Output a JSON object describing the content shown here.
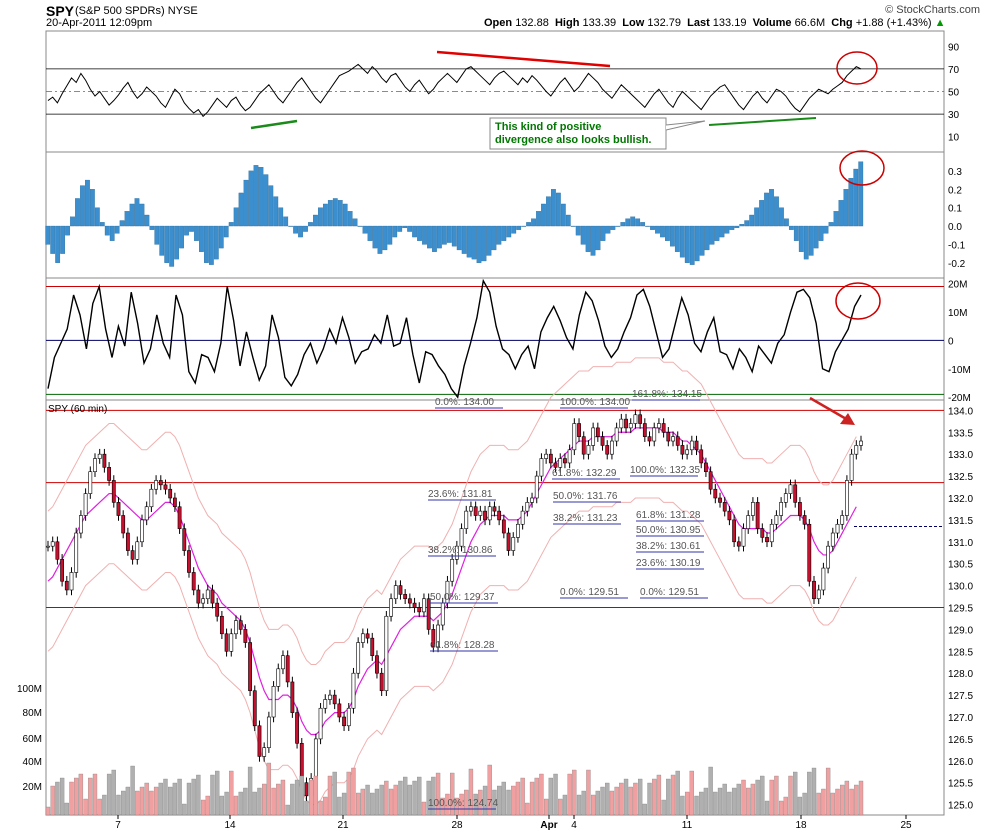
{
  "header": {
    "symbol": "SPY",
    "name": "(S&P 500 SPDRs)",
    "exchange": "NYSE",
    "datetime": "20-Apr-2011 12:09pm",
    "open_label": "Open",
    "open": "132.88",
    "high_label": "High",
    "high": "133.39",
    "low_label": "Low",
    "low": "132.79",
    "last_label": "Last",
    "last": "133.19",
    "volume_label": "Volume",
    "volume": "66.6M",
    "chg_label": "Chg",
    "chg": "+1.88 (+1.43%)",
    "brand": "© StockCharts.com"
  },
  "chart_data": {
    "type": "line",
    "title": "SPY (60 min)",
    "x_ticks": [
      "7",
      "14",
      "21",
      "28",
      "Apr",
      "4",
      "11",
      "18",
      "25"
    ],
    "panels": [
      {
        "name": "rsi",
        "yticks": [
          "90",
          "70",
          "50",
          "30",
          "10"
        ],
        "range": [
          0,
          100
        ],
        "reference_lines": [
          70,
          50,
          30
        ]
      },
      {
        "name": "histogram",
        "yticks": [
          "0.3",
          "0.2",
          "0.1",
          "0.0",
          "-0.1",
          "-0.2"
        ],
        "range": [
          -0.25,
          0.37
        ]
      },
      {
        "name": "oscillator",
        "yticks": [
          "20M",
          "10M",
          "0",
          "-10M",
          "-20M"
        ],
        "range": [
          -21000000,
          22000000
        ],
        "reference_lines": [
          19000000,
          0,
          -19000000
        ]
      },
      {
        "name": "price",
        "yticks": [
          "134.0",
          "133.5",
          "133.0",
          "132.5",
          "132.0",
          "131.5",
          "131.0",
          "130.5",
          "130.0",
          "129.5",
          "129.0",
          "128.5",
          "128.0",
          "127.5",
          "127.0",
          "126.5",
          "126.0",
          "125.5",
          "125.0"
        ],
        "range": [
          124.9,
          134.1
        ],
        "horizontal_lines": [
          134.0,
          132.35,
          129.5
        ]
      },
      {
        "name": "volume",
        "yticks": [
          "100M",
          "80M",
          "60M",
          "40M",
          "20M"
        ]
      }
    ],
    "price": [
      130.9,
      131.0,
      130.6,
      130.1,
      129.9,
      130.3,
      131.2,
      131.6,
      132.1,
      132.6,
      132.9,
      133.0,
      132.7,
      132.4,
      131.9,
      131.6,
      131.2,
      130.8,
      130.6,
      131.0,
      131.5,
      131.8,
      132.2,
      132.4,
      132.3,
      132.2,
      132.0,
      131.8,
      131.3,
      130.8,
      130.3,
      129.9,
      129.6,
      129.7,
      129.9,
      129.6,
      129.3,
      128.9,
      128.5,
      128.9,
      129.2,
      129.0,
      128.7,
      127.6,
      126.8,
      126.1,
      126.3,
      127.0,
      127.7,
      128.1,
      128.4,
      127.8,
      127.1,
      126.4,
      125.5,
      125.2,
      125.6,
      126.5,
      127.2,
      127.4,
      127.5,
      127.3,
      127.0,
      126.8,
      127.2,
      128.0,
      128.7,
      128.9,
      128.8,
      128.4,
      128.0,
      127.6,
      129.3,
      129.7,
      130.0,
      129.8,
      129.7,
      129.6,
      129.5,
      129.4,
      129.7,
      129.0,
      128.6,
      129.1,
      129.6,
      130.1,
      130.6,
      130.9,
      131.3,
      131.7,
      131.8,
      131.6,
      131.7,
      131.5,
      131.8,
      131.7,
      131.5,
      131.2,
      130.8,
      131.1,
      131.4,
      131.7,
      131.9,
      132.0,
      132.5,
      132.9,
      133.0,
      132.8,
      132.7,
      132.9,
      132.8,
      133.1,
      133.7,
      133.4,
      133.0,
      133.2,
      133.6,
      133.4,
      133.2,
      133.0,
      133.3,
      133.6,
      133.8,
      133.6,
      133.7,
      133.9,
      133.7,
      133.4,
      133.3,
      133.6,
      133.7,
      133.5,
      133.3,
      133.4,
      133.2,
      133.0,
      133.1,
      133.3,
      133.1,
      132.8,
      132.6,
      132.2,
      132.0,
      131.9,
      131.7,
      131.5,
      131.0,
      130.9,
      131.3,
      131.6,
      131.9,
      131.3,
      131.1,
      131.0,
      131.4,
      131.6,
      131.9,
      132.1,
      132.3,
      131.9,
      131.6,
      131.4,
      130.1,
      129.7,
      129.9,
      130.4,
      130.9,
      131.2,
      131.4,
      131.6,
      132.4,
      133.0,
      133.2,
      133.3
    ],
    "price_ma": [
      130.1,
      130.2,
      130.4,
      130.6,
      130.8,
      131.0,
      131.2,
      131.4,
      131.6,
      131.7,
      131.8,
      131.9,
      132.0,
      132.1,
      132.1,
      132.0,
      131.9,
      131.8,
      131.7,
      131.6,
      131.5,
      131.5,
      131.6,
      131.7,
      131.8,
      131.9,
      131.9,
      131.8,
      131.6,
      131.3,
      131.0,
      130.7,
      130.4,
      130.2,
      130.0,
      129.9,
      129.8,
      129.6,
      129.5,
      129.4,
      129.3,
      129.2,
      129.0,
      128.7,
      128.3,
      127.9,
      127.6,
      127.4,
      127.4,
      127.4,
      127.5,
      127.5,
      127.4,
      127.2,
      126.9,
      126.7,
      126.6,
      126.6,
      126.7,
      126.9,
      127.0,
      127.1,
      127.1,
      127.1,
      127.2,
      127.4,
      127.7,
      127.9,
      128.1,
      128.2,
      128.3,
      128.2,
      128.4,
      128.6,
      128.8,
      129.0,
      129.1,
      129.2,
      129.3,
      129.3,
      129.3,
      129.3,
      129.2,
      129.3,
      129.4,
      129.6,
      129.8,
      130.1,
      130.4,
      130.7,
      131.0,
      131.2,
      131.4,
      131.5,
      131.6,
      131.6,
      131.6,
      131.6,
      131.5,
      131.5,
      131.5,
      131.6,
      131.7,
      131.9,
      132.1,
      132.3,
      132.5,
      132.7,
      132.8,
      132.9,
      133.0,
      133.1,
      133.2,
      133.3,
      133.3,
      133.3,
      133.4,
      133.4,
      133.4,
      133.4,
      133.4,
      133.5,
      133.5,
      133.5,
      133.5,
      133.6,
      133.6,
      133.6,
      133.6,
      133.6,
      133.6,
      133.5,
      133.5,
      133.5,
      133.4,
      133.3,
      133.3,
      133.2,
      133.1,
      133.0,
      132.8,
      132.6,
      132.4,
      132.2,
      132.0,
      131.8,
      131.6,
      131.4,
      131.3,
      131.3,
      131.3,
      131.3,
      131.3,
      131.2,
      131.2,
      131.3,
      131.4,
      131.5,
      131.6,
      131.6,
      131.6,
      131.5,
      131.3,
      131.0,
      130.8,
      130.7,
      130.7,
      130.8,
      131.0,
      131.2,
      131.4,
      131.6,
      131.8
    ],
    "rsi": [
      42,
      45,
      40,
      48,
      55,
      62,
      58,
      66,
      60,
      52,
      46,
      50,
      44,
      38,
      42,
      47,
      53,
      58,
      50,
      44,
      48,
      54,
      50,
      46,
      40,
      36,
      44,
      52,
      48,
      40,
      35,
      31,
      34,
      28,
      32,
      38,
      44,
      40,
      36,
      42,
      45,
      38,
      33,
      36,
      42,
      48,
      52,
      56,
      50,
      44,
      40,
      46,
      52,
      58,
      62,
      56,
      50,
      44,
      40,
      46,
      52,
      58,
      64,
      66,
      68,
      71,
      74,
      70,
      66,
      72,
      68,
      62,
      58,
      64,
      66,
      60,
      54,
      50,
      56,
      60,
      54,
      48,
      52,
      58,
      62,
      66,
      62,
      58,
      64,
      70,
      72,
      68,
      64,
      60,
      56,
      62,
      66,
      68,
      64,
      60,
      56,
      62,
      58,
      64,
      60,
      55,
      50,
      46,
      52,
      58,
      62,
      56,
      50,
      54,
      60,
      66,
      62,
      58,
      52,
      48,
      44,
      50,
      56,
      52,
      48,
      44,
      40,
      36,
      42,
      48,
      52,
      46,
      40,
      36,
      44,
      50,
      46,
      42,
      38,
      34,
      40,
      46,
      50,
      54,
      56,
      50,
      44,
      38,
      34,
      40,
      46,
      50,
      44,
      40,
      46,
      52,
      50,
      46,
      40,
      35,
      32,
      38,
      44,
      48,
      52,
      50,
      48,
      52,
      55,
      58,
      64,
      68,
      72,
      70
    ],
    "histogram": [
      -0.1,
      -0.15,
      -0.2,
      -0.15,
      -0.05,
      0.05,
      0.15,
      0.22,
      0.25,
      0.2,
      0.1,
      0.02,
      -0.05,
      -0.08,
      -0.04,
      0.03,
      0.08,
      0.12,
      0.15,
      0.12,
      0.06,
      -0.02,
      -0.1,
      -0.16,
      -0.2,
      -0.22,
      -0.18,
      -0.12,
      -0.05,
      -0.03,
      -0.08,
      -0.14,
      -0.2,
      -0.21,
      -0.18,
      -0.12,
      -0.06,
      0.02,
      0.1,
      0.18,
      0.25,
      0.3,
      0.33,
      0.32,
      0.28,
      0.22,
      0.16,
      0.1,
      0.05,
      0.0,
      -0.04,
      -0.06,
      -0.03,
      0.02,
      0.06,
      0.1,
      0.12,
      0.14,
      0.15,
      0.14,
      0.12,
      0.08,
      0.04,
      0.0,
      -0.04,
      -0.08,
      -0.12,
      -0.15,
      -0.13,
      -0.1,
      -0.06,
      -0.03,
      -0.01,
      -0.03,
      -0.06,
      -0.08,
      -0.1,
      -0.12,
      -0.14,
      -0.12,
      -0.1,
      -0.09,
      -0.11,
      -0.13,
      -0.15,
      -0.17,
      -0.18,
      -0.2,
      -0.19,
      -0.16,
      -0.13,
      -0.1,
      -0.08,
      -0.06,
      -0.04,
      -0.02,
      0.0,
      0.02,
      0.04,
      0.08,
      0.12,
      0.16,
      0.2,
      0.18,
      0.12,
      0.06,
      0.0,
      -0.05,
      -0.1,
      -0.14,
      -0.16,
      -0.13,
      -0.08,
      -0.04,
      -0.02,
      0.0,
      0.02,
      0.04,
      0.05,
      0.04,
      0.02,
      0.0,
      -0.02,
      -0.04,
      -0.06,
      -0.08,
      -0.11,
      -0.14,
      -0.17,
      -0.2,
      -0.21,
      -0.19,
      -0.16,
      -0.13,
      -0.1,
      -0.08,
      -0.06,
      -0.04,
      -0.02,
      -0.01,
      0.01,
      0.03,
      0.06,
      0.1,
      0.14,
      0.18,
      0.2,
      0.16,
      0.1,
      0.04,
      -0.02,
      -0.08,
      -0.14,
      -0.18,
      -0.16,
      -0.12,
      -0.08,
      -0.04,
      0.02,
      0.08,
      0.14,
      0.2,
      0.26,
      0.31,
      0.35
    ],
    "oscillator": [
      -17000000,
      -6000000,
      -1000000,
      4000000,
      16000000,
      9000000,
      -3000000,
      13000000,
      19000000,
      4000000,
      -6000000,
      5000000,
      -2000000,
      17000000,
      6000000,
      -8000000,
      -3000000,
      9000000,
      -1000000,
      -6000000,
      16000000,
      9000000,
      -11000000,
      -15000000,
      -5000000,
      -6000000,
      -11000000,
      -1000000,
      19000000,
      7000000,
      -9000000,
      3000000,
      -6000000,
      -14000000,
      -9000000,
      9000000,
      1000000,
      -13000000,
      -16000000,
      -12000000,
      -5000000,
      -1000000,
      -8000000,
      -3000000,
      4000000,
      -1000000,
      8000000,
      1000000,
      -8000000,
      -4000000,
      -3000000,
      2000000,
      -1000000,
      9000000,
      -2000000,
      -1000000,
      8000000,
      -5000000,
      -15000000,
      -4000000,
      -5000000,
      -9000000,
      -12000000,
      -17000000,
      -20000000,
      -9000000,
      -1000000,
      8000000,
      21000000,
      17000000,
      5000000,
      -3000000,
      -5000000,
      -10000000,
      -5000000,
      -2000000,
      -10000000,
      3000000,
      8000000,
      12000000,
      7000000,
      1000000,
      -3000000,
      9000000,
      17000000,
      14000000,
      7000000,
      -2000000,
      -6000000,
      -3000000,
      3000000,
      8000000,
      16000000,
      18000000,
      12000000,
      3000000,
      -6000000,
      -3000000,
      6000000,
      15000000,
      9000000,
      -1000000,
      -4000000,
      3000000,
      8000000,
      -4000000,
      -5000000,
      -10000000,
      -3000000,
      -6000000,
      -11000000,
      -2000000,
      -5000000,
      -8000000,
      -1000000,
      2000000,
      10000000,
      17000000,
      18000000,
      15000000,
      6000000,
      -10000000,
      -11000000,
      -4000000,
      0,
      4000000,
      12000000,
      16000000
    ],
    "fib_labels": [
      "0.0%: 134.00",
      "23.6%: 131.81",
      "38.2%: 130.86",
      "50.0%: 129.37",
      "61.8%: 128.28",
      "100.0%: 124.74",
      "100.0%: 134.00",
      "161.8%: 134.15",
      "61.8%: 132.29",
      "100.0%: 132.35",
      "50.0%: 131.76",
      "38.2%: 131.23",
      "61.8%: 131.28",
      "50.0%: 130.95",
      "38.2%: 130.61",
      "23.6%: 130.19",
      "0.0%: 129.51",
      "0.0%: 129.51"
    ],
    "annotation": [
      "This kind of positive",
      "divergence also looks bullish."
    ]
  },
  "colors": {
    "rsi_line": "#000000",
    "histogram": "#3b8fce",
    "price_ma": "#e020e0",
    "band": "#f0b0b0",
    "red_line": "#cc0000",
    "green_line": "#006600",
    "annotation_text": "#007700",
    "circle": "#cc0000",
    "volume_up": "#f0a0a0",
    "volume_down": "#b0b0b0"
  }
}
